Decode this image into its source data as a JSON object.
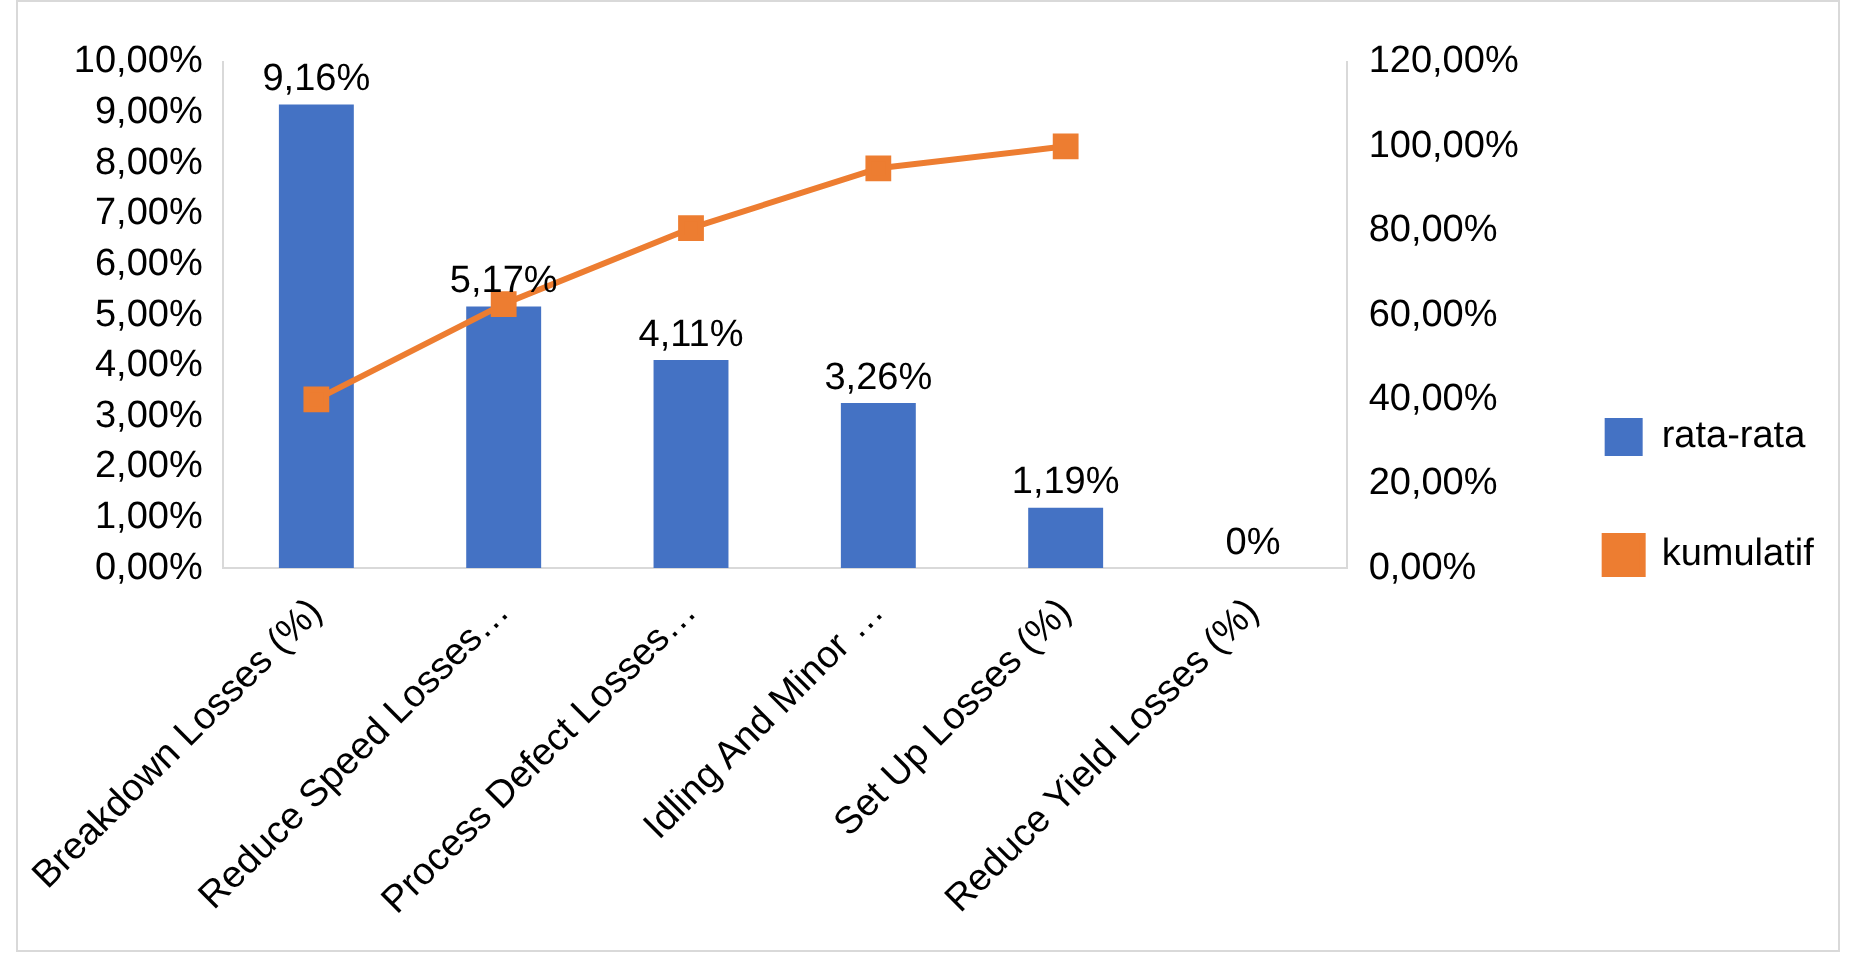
{
  "chart_data": {
    "type": "bar",
    "categories": [
      "Breakdown Losses (%)",
      "Reduce Speed Losses…",
      "Process Defect Losses…",
      "Idling And Minor …",
      "Set Up Losses (%)",
      "Reduce Yield Losses (%)"
    ],
    "series": [
      {
        "name": "rata-rata",
        "color": "#4472c4",
        "values": [
          9.16,
          5.17,
          4.11,
          3.26,
          1.19,
          0
        ],
        "value_labels": [
          "9,16%",
          "5,17%",
          "4,11%",
          "3,26%",
          "1,19%",
          "0%"
        ]
      },
      {
        "name": "kumulatif",
        "type": "line",
        "axis": "y2",
        "color": "#ed7d31",
        "marker": "square",
        "values": [
          40.0,
          62.6,
          80.6,
          94.8,
          100,
          null
        ]
      }
    ],
    "ylim": [
      0,
      10
    ],
    "yticks": [
      {
        "value": 0,
        "label": "0,00%"
      },
      {
        "value": 1,
        "label": "1,00%"
      },
      {
        "value": 2,
        "label": "2,00%"
      },
      {
        "value": 3,
        "label": "3,00%"
      },
      {
        "value": 4,
        "label": "4,00%"
      },
      {
        "value": 5,
        "label": "5,00%"
      },
      {
        "value": 6,
        "label": "6,00%"
      },
      {
        "value": 7,
        "label": "7,00%"
      },
      {
        "value": 8,
        "label": "8,00%"
      },
      {
        "value": 9,
        "label": "9,00%"
      },
      {
        "value": 10,
        "label": "10,00%"
      }
    ],
    "y2lim": [
      0,
      120
    ],
    "y2ticks": [
      {
        "value": 0,
        "label": "0,00%"
      },
      {
        "value": 20,
        "label": "20,00%"
      },
      {
        "value": 40,
        "label": "40,00%"
      },
      {
        "value": 60,
        "label": "60,00%"
      },
      {
        "value": 80,
        "label": "80,00%"
      },
      {
        "value": 100,
        "label": "100,00%"
      },
      {
        "value": 120,
        "label": "120,00%"
      }
    ],
    "grid": false,
    "legend": "right"
  }
}
